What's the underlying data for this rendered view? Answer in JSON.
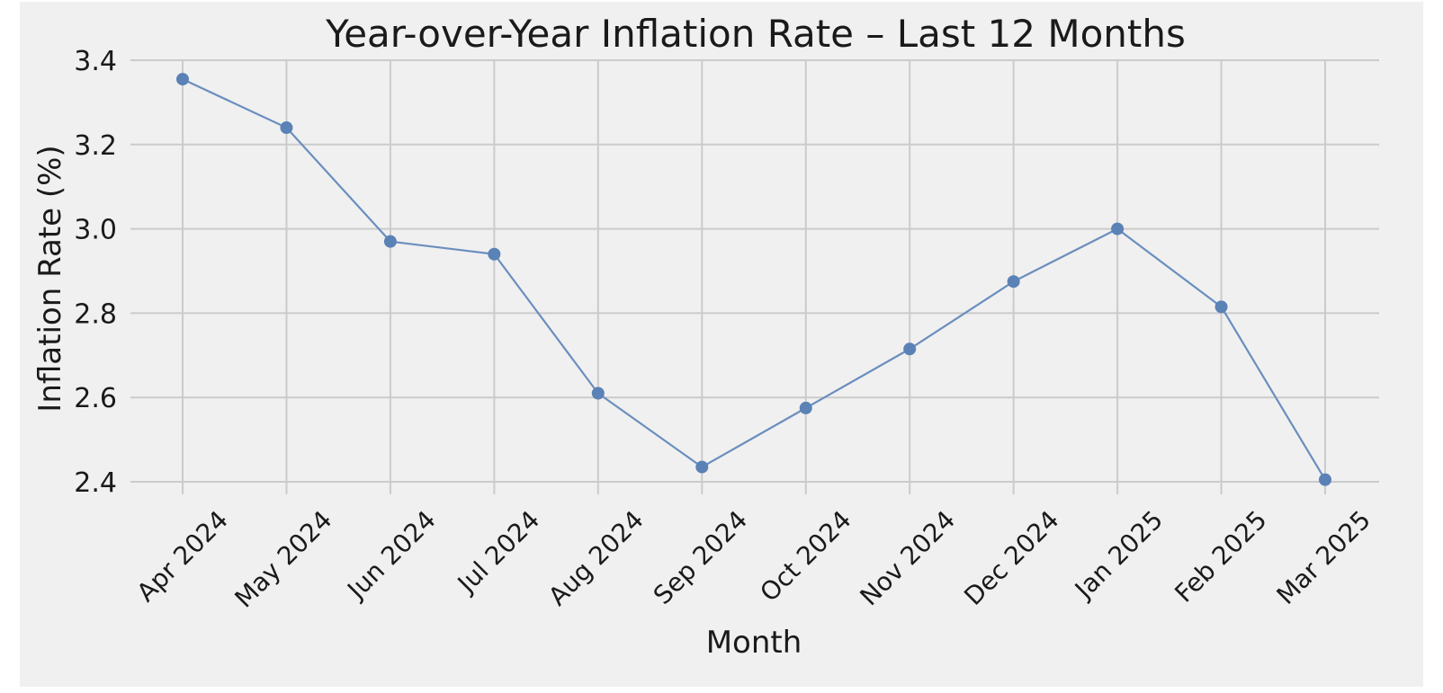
{
  "colors": {
    "figure_bg": "#f0f0f0",
    "grid": "#cbcbcb",
    "line": "#6a8ebf",
    "marker": "#5a82b6",
    "text": "#1a1a1a"
  },
  "chart_data": {
    "type": "line",
    "title": "Year-over-Year Inflation Rate – Last 12 Months",
    "xlabel": "Month",
    "ylabel": "Inflation Rate (%)",
    "categories": [
      "Apr 2024",
      "May 2024",
      "Jun 2024",
      "Jul 2024",
      "Aug 2024",
      "Sep 2024",
      "Oct 2024",
      "Nov 2024",
      "Dec 2024",
      "Jan 2025",
      "Feb 2025",
      "Mar 2025"
    ],
    "series": [
      {
        "name": "Inflation Rate",
        "values": [
          3.355,
          3.24,
          2.97,
          2.94,
          2.61,
          2.435,
          2.575,
          2.715,
          2.875,
          3.0,
          2.815,
          2.405
        ],
        "marker": "circle"
      }
    ],
    "ylim": [
      2.4,
      3.4
    ],
    "yticks": [
      "2.4",
      "2.6",
      "2.8",
      "3.0",
      "3.2",
      "3.4"
    ],
    "grid": true,
    "legend": "none"
  }
}
